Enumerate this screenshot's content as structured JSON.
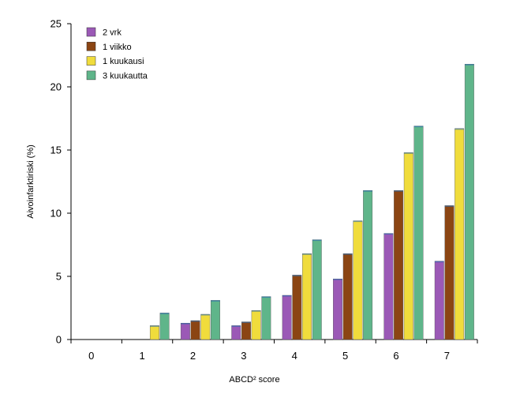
{
  "chart_data": {
    "type": "bar",
    "title": "",
    "xlabel": "ABCD² score",
    "ylabel": "Aivoinfarktiriski (%)",
    "categories": [
      "0",
      "1",
      "2",
      "3",
      "4",
      "5",
      "6",
      "7"
    ],
    "ylim": [
      0,
      25
    ],
    "yticks": [
      "0",
      "5",
      "10",
      "15",
      "20",
      "25"
    ],
    "grid": false,
    "legend_position": "top-left",
    "series": [
      {
        "name": "2 vrk",
        "color": "#9b59b6",
        "values": [
          0,
          0,
          1.3,
          1.1,
          3.5,
          4.8,
          8.4,
          6.2
        ]
      },
      {
        "name": "1 viikko",
        "color": "#8b4513",
        "values": [
          0,
          0,
          1.5,
          1.4,
          5.1,
          6.8,
          11.8,
          10.6
        ]
      },
      {
        "name": "1 kuukausi",
        "color": "#f0dc3c",
        "values": [
          0,
          1.1,
          2.0,
          2.3,
          6.8,
          9.4,
          14.8,
          16.7
        ]
      },
      {
        "name": "3 kuukautta",
        "color": "#5fb58a",
        "values": [
          0,
          2.1,
          3.1,
          3.4,
          7.9,
          11.8,
          16.9,
          21.8
        ]
      }
    ]
  }
}
